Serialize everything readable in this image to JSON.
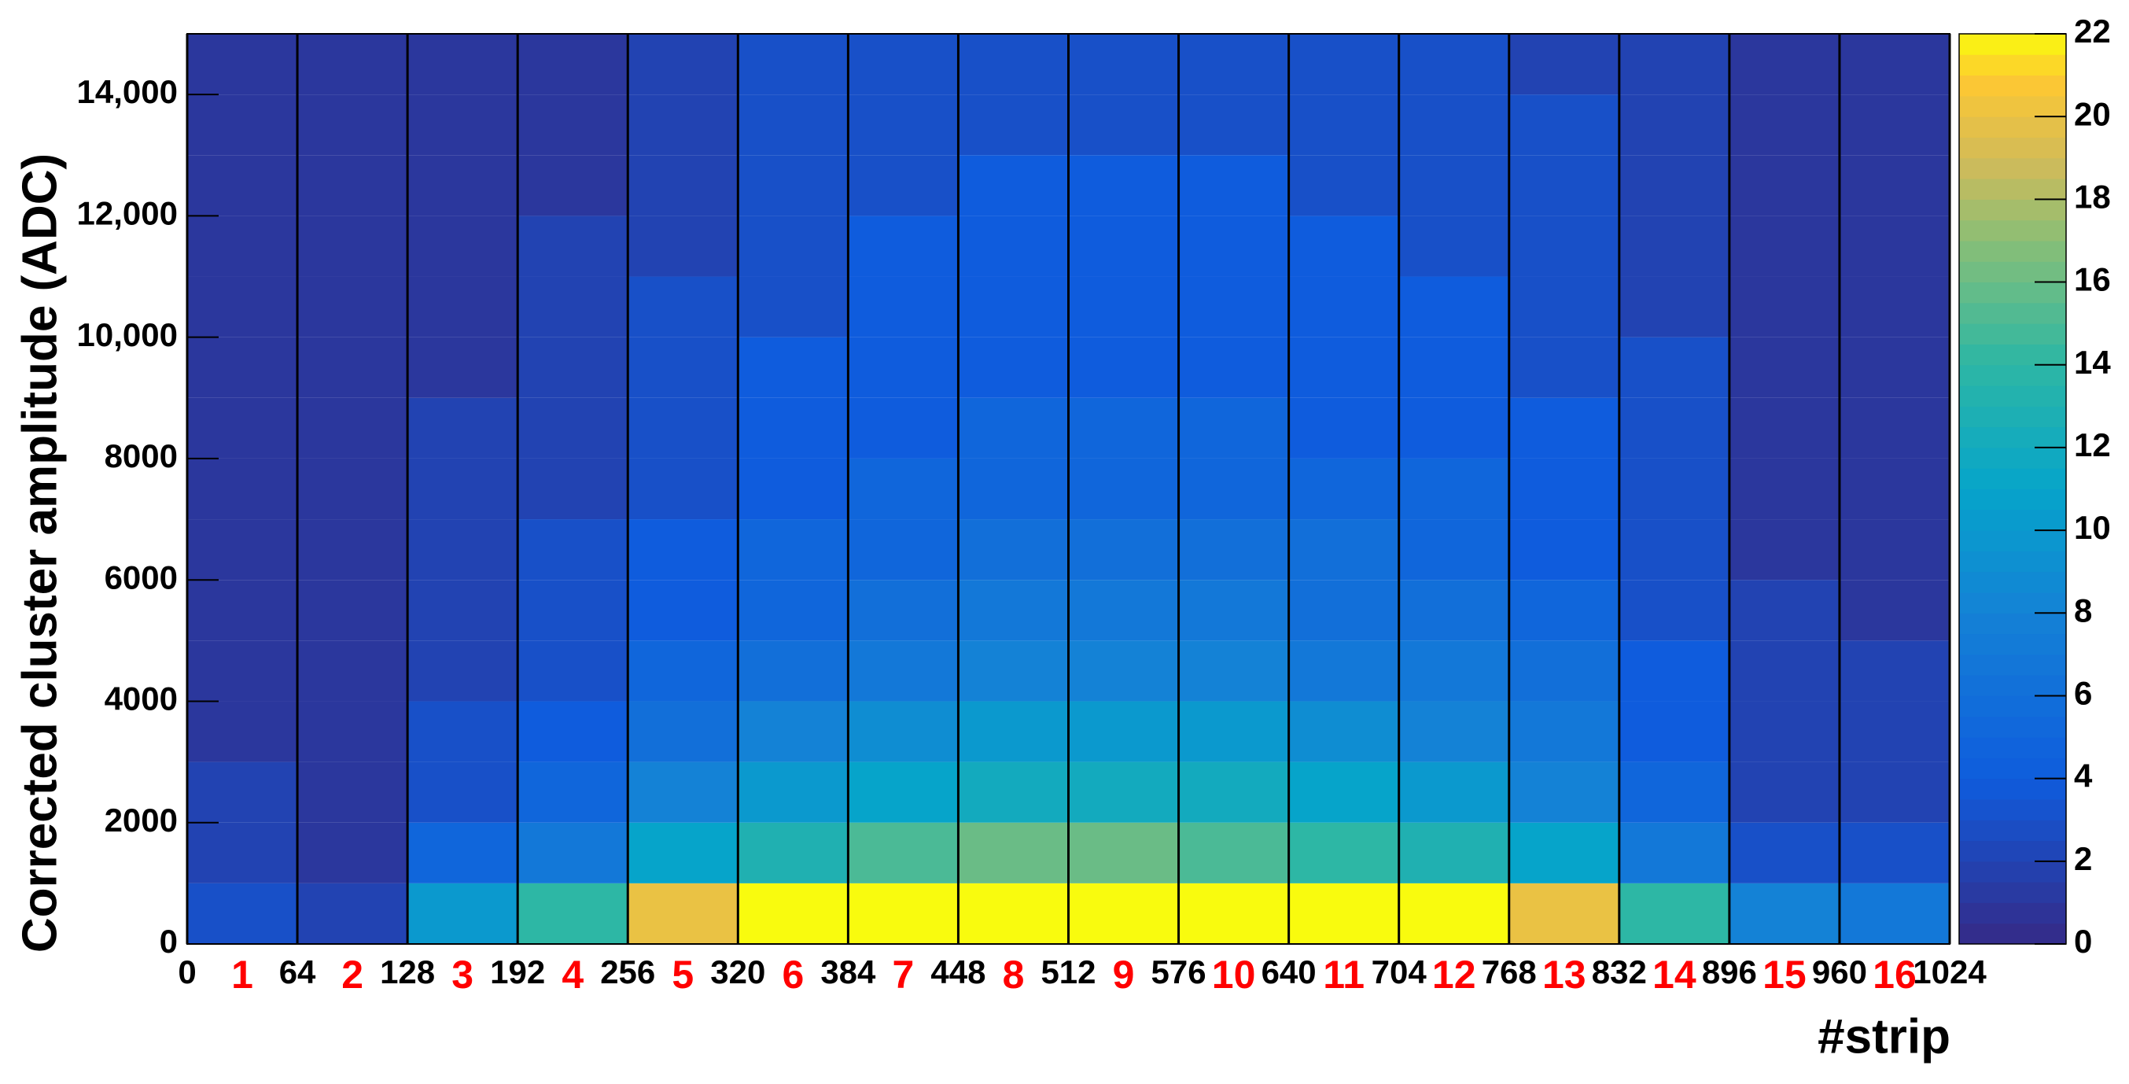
{
  "chart_data": {
    "type": "heatmap",
    "xlabel": "#strip",
    "ylabel": "Corrected cluster amplitude (ADC)",
    "xlim": [
      0,
      1024
    ],
    "xticks": [
      0,
      64,
      128,
      192,
      256,
      320,
      384,
      448,
      512,
      576,
      640,
      704,
      768,
      832,
      896,
      960,
      1024
    ],
    "ylim": [
      0,
      15000
    ],
    "yticks": [
      0,
      2000,
      4000,
      6000,
      8000,
      {
        "value": 10000,
        "label": "10,000"
      },
      {
        "value": 12000,
        "label": "12,000"
      },
      {
        "value": 14000,
        "label": "14,000"
      }
    ],
    "zlim": [
      0,
      22
    ],
    "zticks": [
      0,
      2,
      4,
      6,
      8,
      10,
      12,
      14,
      16,
      18,
      20,
      22
    ],
    "colormap": "bird",
    "chip_labels": [
      "1",
      "2",
      "3",
      "4",
      "5",
      "6",
      "7",
      "8",
      "9",
      "10",
      "11",
      "12",
      "13",
      "14",
      "15",
      "16"
    ],
    "chip_label_color": "#ff0000",
    "xbins": [
      0,
      64,
      128,
      192,
      256,
      320,
      384,
      448,
      512,
      576,
      640,
      704,
      768,
      832,
      896,
      960,
      1024
    ],
    "ybins": [
      0,
      1000,
      2000,
      3000,
      4000,
      5000,
      6000,
      7000,
      8000,
      9000,
      10000,
      11000,
      12000,
      13000,
      14000,
      15000
    ],
    "z": [
      [
        3,
        2,
        2,
        1,
        1,
        1,
        1,
        1,
        1,
        1,
        1,
        1,
        1,
        1,
        1
      ],
      [
        2,
        1,
        1,
        1,
        1,
        1,
        1,
        1,
        1,
        1,
        1,
        1,
        1,
        1,
        1
      ],
      [
        10,
        5,
        3,
        3,
        2,
        2,
        2,
        2,
        2,
        1,
        1,
        1,
        1,
        1,
        1
      ],
      [
        14,
        7,
        5,
        4,
        3,
        3,
        3,
        2,
        2,
        2,
        2,
        2,
        1,
        1,
        1
      ],
      [
        20,
        11,
        8,
        6,
        5,
        4,
        4,
        3,
        3,
        3,
        3,
        2,
        2,
        2,
        2
      ],
      [
        22,
        13,
        10,
        8,
        6,
        5,
        5,
        4,
        4,
        4,
        3,
        3,
        3,
        3,
        3
      ],
      [
        22,
        15,
        11,
        9,
        7,
        6,
        5,
        5,
        4,
        4,
        4,
        4,
        3,
        3,
        3
      ],
      [
        22,
        16,
        12,
        10,
        8,
        7,
        6,
        5,
        5,
        4,
        4,
        4,
        4,
        3,
        3
      ],
      [
        22,
        16,
        12,
        10,
        8,
        7,
        6,
        5,
        5,
        4,
        4,
        4,
        4,
        3,
        3
      ],
      [
        22,
        15,
        12,
        10,
        8,
        7,
        6,
        5,
        5,
        4,
        4,
        4,
        4,
        3,
        3
      ],
      [
        22,
        14,
        11,
        9,
        7,
        6,
        6,
        5,
        4,
        4,
        4,
        4,
        3,
        3,
        3
      ],
      [
        22,
        13,
        10,
        8,
        7,
        6,
        5,
        5,
        4,
        4,
        4,
        3,
        3,
        3,
        3
      ],
      [
        20,
        11,
        8,
        7,
        6,
        5,
        4,
        4,
        4,
        3,
        3,
        3,
        3,
        3,
        2
      ],
      [
        14,
        7,
        5,
        4,
        4,
        3,
        3,
        3,
        3,
        3,
        2,
        2,
        2,
        2,
        2
      ],
      [
        8,
        3,
        2,
        2,
        2,
        2,
        1,
        1,
        1,
        1,
        1,
        1,
        1,
        1,
        1
      ],
      [
        7,
        3,
        2,
        2,
        2,
        1,
        1,
        1,
        1,
        1,
        1,
        1,
        1,
        1,
        1
      ]
    ]
  }
}
